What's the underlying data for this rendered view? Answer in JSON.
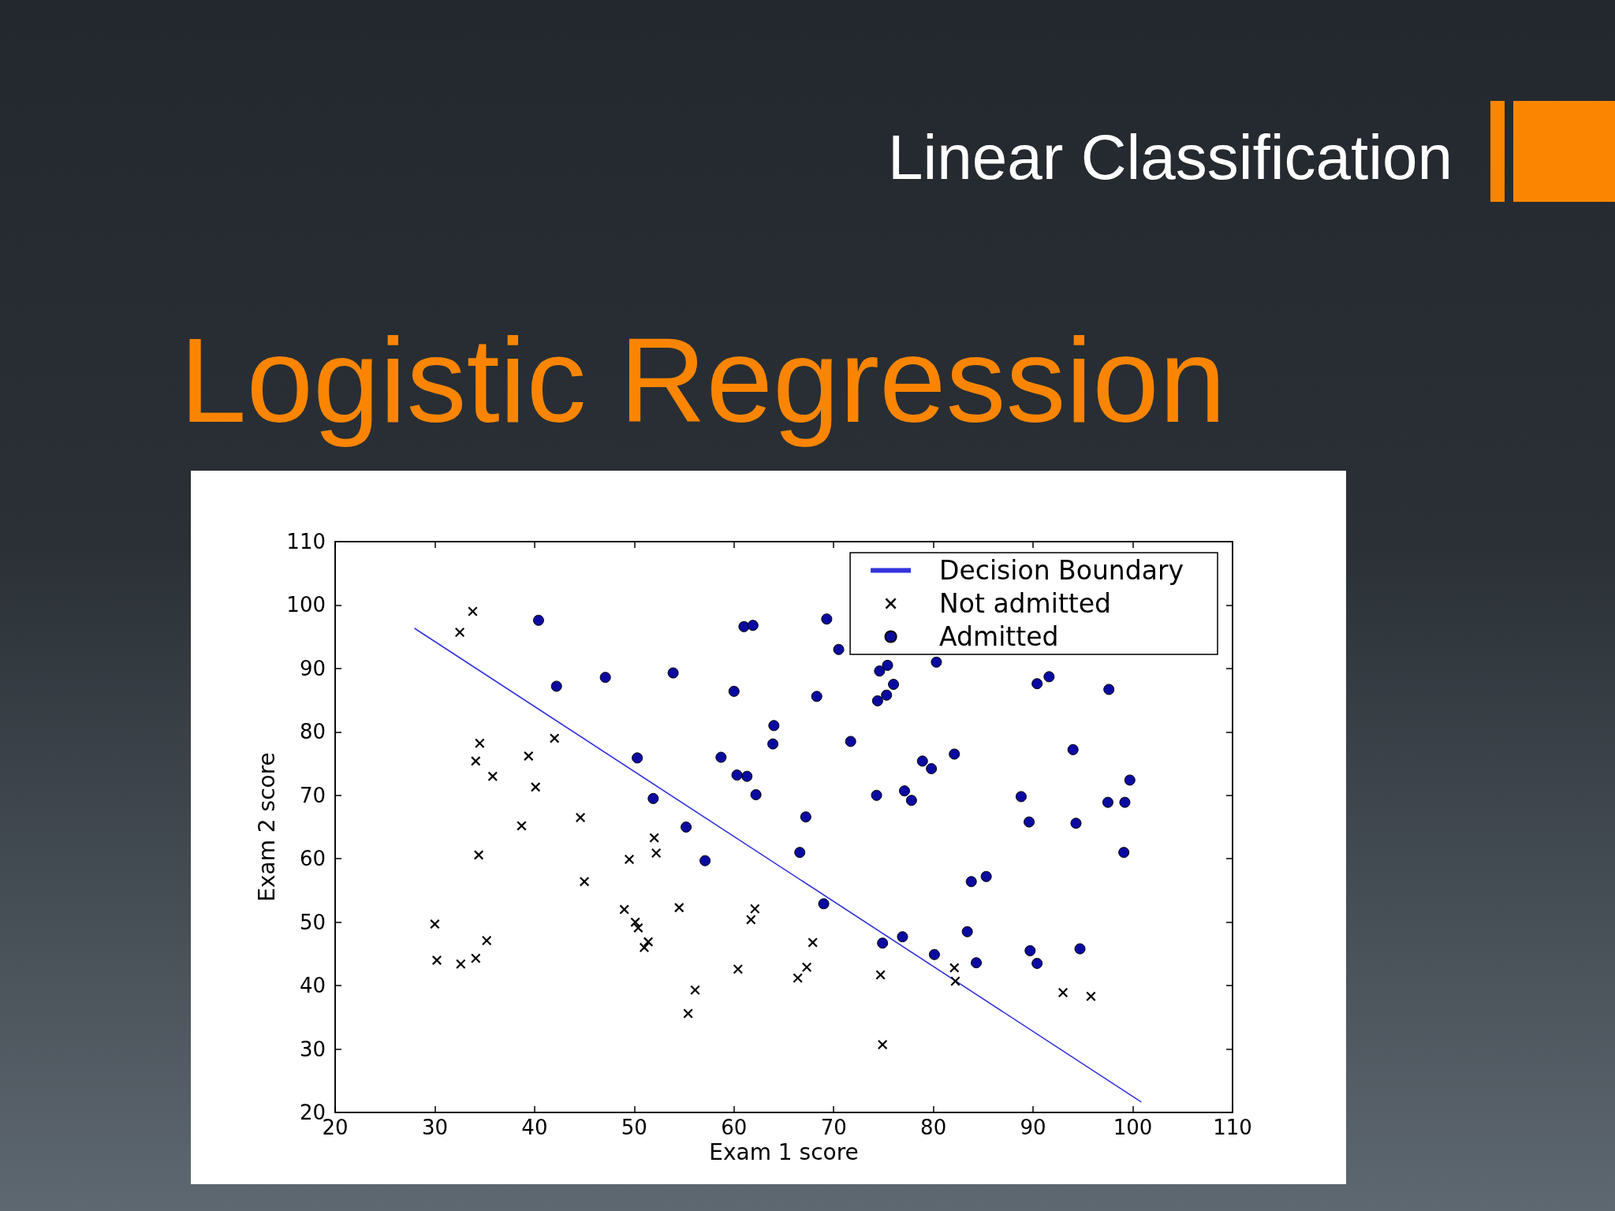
{
  "chart_data": {
    "type": "scatter",
    "title": "Logistic Regression",
    "subtitle": "Linear Classification",
    "xlabel": "Exam 1 score",
    "ylabel": "Exam 2 score",
    "xlim": [
      20,
      110
    ],
    "ylim": [
      20,
      110
    ],
    "xticks": [
      20,
      30,
      40,
      50,
      60,
      70,
      80,
      90,
      100,
      110
    ],
    "yticks": [
      20,
      30,
      40,
      50,
      60,
      70,
      80,
      90,
      100,
      110
    ],
    "legend": "top right",
    "series": [
      {
        "name": "Decision Boundary",
        "type": "line",
        "color": "#3333dd",
        "marker": "none",
        "line_style": "solid",
        "x": [
          28.0,
          100.8
        ],
        "values": [
          96.3,
          21.7
        ]
      },
      {
        "name": "Not admitted",
        "color": "#000000",
        "marker": "cross",
        "x": [
          33.8,
          32.5,
          34.5,
          34.1,
          35.8,
          39.4,
          40.1,
          42.0,
          38.7,
          44.6,
          34.4,
          45.0,
          49.5,
          52.0,
          52.2,
          30.0,
          30.2,
          32.6,
          34.1,
          35.2,
          49.0,
          50.1,
          50.4,
          51.4,
          51.0,
          54.5,
          62.1,
          61.7,
          60.4,
          56.1,
          55.4,
          67.9,
          67.3,
          66.4,
          74.7,
          74.9,
          82.1,
          82.2,
          93.0,
          95.8
        ],
        "values": [
          99.0,
          95.7,
          78.2,
          75.4,
          73.0,
          76.2,
          71.3,
          79.0,
          65.2,
          66.5,
          60.6,
          56.4,
          59.9,
          63.3,
          60.9,
          49.7,
          44.0,
          43.4,
          44.3,
          47.1,
          52.0,
          50.0,
          49.1,
          46.9,
          46.0,
          52.3,
          52.1,
          50.4,
          42.6,
          39.3,
          35.6,
          46.8,
          42.9,
          41.2,
          41.7,
          30.7,
          42.8,
          40.7,
          38.9,
          38.3
        ]
      },
      {
        "name": "Admitted",
        "color": "#0a0aa0",
        "marker": "circle",
        "x": [
          40.4,
          42.2,
          47.1,
          53.9,
          60.0,
          61.0,
          61.9,
          64.0,
          63.9,
          58.7,
          60.3,
          61.3,
          62.2,
          50.3,
          51.9,
          55.2,
          57.1,
          69.3,
          70.5,
          80.3,
          74.6,
          75.4,
          76.0,
          75.3,
          74.4,
          68.3,
          71.7,
          74.3,
          77.1,
          77.8,
          78.9,
          79.8,
          82.1,
          67.2,
          66.6,
          88.8,
          89.6,
          94.3,
          94.0,
          90.4,
          91.6,
          97.6,
          99.7,
          97.5,
          99.2,
          99.1,
          69.0,
          83.8,
          85.3,
          83.4,
          74.9,
          76.9,
          80.1,
          84.3,
          89.7,
          90.4,
          94.7
        ],
        "values": [
          97.6,
          87.2,
          88.6,
          89.3,
          86.4,
          96.6,
          96.8,
          81.0,
          78.1,
          76.0,
          73.2,
          73.0,
          70.1,
          75.9,
          69.5,
          65.0,
          59.7,
          97.8,
          93.0,
          91.0,
          89.6,
          90.5,
          87.5,
          85.8,
          84.9,
          85.6,
          78.5,
          70.0,
          70.7,
          69.2,
          75.4,
          74.2,
          76.5,
          66.6,
          61.0,
          69.8,
          65.8,
          65.6,
          77.2,
          87.6,
          88.7,
          86.7,
          72.4,
          68.9,
          68.9,
          61.0,
          52.9,
          56.4,
          57.2,
          48.5,
          46.7,
          47.7,
          44.9,
          43.6,
          45.5,
          43.5,
          45.8
        ]
      }
    ]
  }
}
